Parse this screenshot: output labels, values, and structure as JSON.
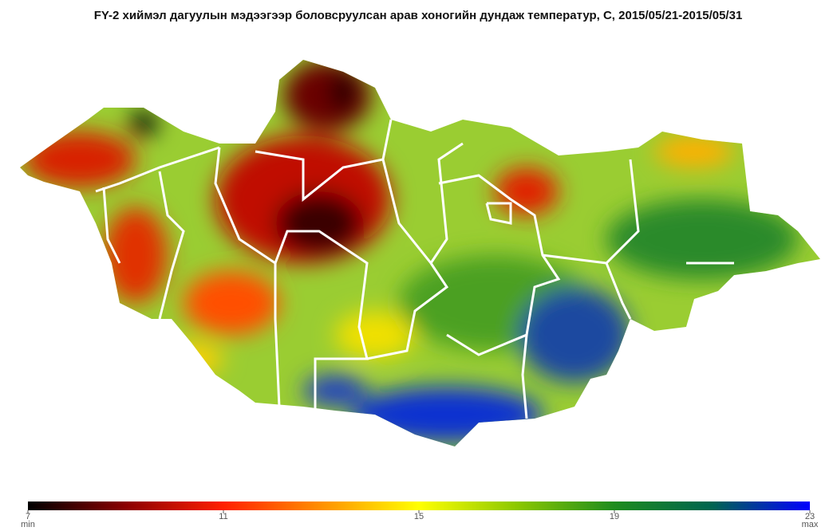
{
  "title": "FY-2 хиймэл дагуулын мэдээгээр боловсруулсан  арав хоногийн дундаж температур, С, 2015/05/21-2015/05/31",
  "colorbar": {
    "range": [
      7,
      23
    ],
    "ticks": [
      7,
      11,
      15,
      19,
      23
    ],
    "min_label": "min",
    "max_label": "max",
    "colors": [
      "#000000",
      "#8b0000",
      "#ff2000",
      "#ff9000",
      "#ffff00",
      "#8cc800",
      "#1e8c1e",
      "#006450",
      "#0000ff"
    ]
  }
}
